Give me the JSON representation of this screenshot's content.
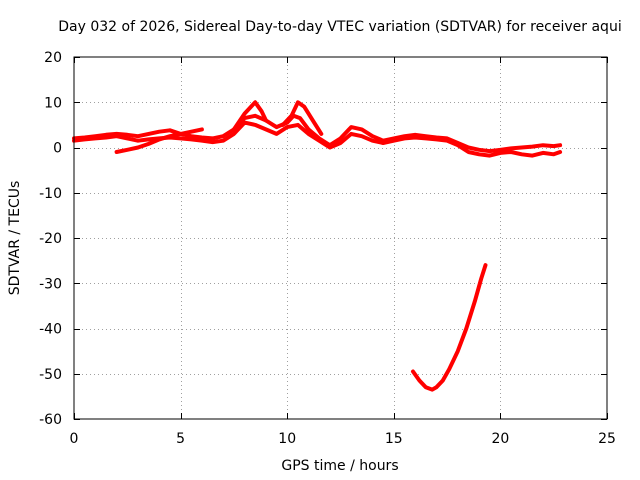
{
  "chart_data": {
    "type": "line",
    "title": "Day 032 of 2026, Sidereal Day-to-day VTEC variation (SDTVAR) for receiver aqui",
    "xlabel": "GPS time / hours",
    "ylabel": "SDTVAR / TECUs",
    "xlim": [
      0,
      25
    ],
    "ylim": [
      -60,
      20
    ],
    "xticks": [
      0,
      5,
      10,
      15,
      20,
      25
    ],
    "xtick_labels": [
      "0",
      "5",
      "10",
      "15",
      "20",
      "25"
    ],
    "yticks": [
      20,
      10,
      0,
      -10,
      -20,
      -30,
      -40,
      -50,
      -60
    ],
    "ytick_labels": [
      "20",
      "10",
      "0",
      "-10",
      "-20",
      "-30",
      "-40",
      "-50",
      "-60"
    ],
    "grid": true,
    "line_color": "#ff0000",
    "series": [
      {
        "name": "main-band-upper",
        "x": [
          0.0,
          0.5,
          1.0,
          1.5,
          2.0,
          2.5,
          3.0,
          3.5,
          4.0,
          4.5,
          5.0,
          5.5,
          6.0,
          6.5,
          7.0,
          7.5,
          8.0,
          8.5,
          9.0,
          9.5,
          10.0,
          10.3,
          10.6,
          11.0,
          11.5,
          12.0,
          12.5,
          13.0,
          13.5,
          14.0,
          14.5,
          15.0,
          15.5,
          16.0,
          16.5,
          17.0,
          17.5,
          18.0,
          18.5,
          19.0,
          19.5,
          20.0,
          20.5,
          21.0,
          21.5,
          22.0,
          22.5,
          22.8
        ],
        "values": [
          2.0,
          2.2,
          2.5,
          2.8,
          3.0,
          2.8,
          2.5,
          3.0,
          3.5,
          3.8,
          3.0,
          2.5,
          2.2,
          2.0,
          2.5,
          4.0,
          6.5,
          7.0,
          6.0,
          4.5,
          5.5,
          7.0,
          6.5,
          4.0,
          2.0,
          0.5,
          2.0,
          4.5,
          4.0,
          2.5,
          1.5,
          2.0,
          2.5,
          2.8,
          2.5,
          2.2,
          2.0,
          1.0,
          0.0,
          -0.5,
          -0.8,
          -0.5,
          -0.2,
          0.0,
          0.2,
          0.5,
          0.3,
          0.5
        ]
      },
      {
        "name": "main-band-lower",
        "x": [
          0.0,
          0.5,
          1.0,
          1.5,
          2.0,
          2.5,
          3.0,
          3.5,
          4.0,
          4.5,
          5.0,
          5.5,
          6.0,
          6.5,
          7.0,
          7.5,
          8.0,
          8.5,
          9.0,
          9.5,
          10.0,
          10.5,
          11.0,
          11.5,
          12.0,
          12.5,
          13.0,
          13.5,
          14.0,
          14.5,
          15.0,
          15.5,
          16.0,
          16.5,
          17.0,
          17.5,
          18.0,
          18.5,
          19.0,
          19.5,
          20.0,
          20.5,
          21.0,
          21.5,
          22.0,
          22.5,
          22.8
        ],
        "values": [
          1.5,
          1.8,
          2.0,
          2.2,
          2.5,
          2.0,
          1.5,
          1.8,
          2.0,
          2.2,
          2.0,
          1.8,
          1.5,
          1.2,
          1.5,
          3.0,
          5.5,
          5.0,
          4.0,
          3.0,
          4.5,
          5.0,
          3.0,
          1.5,
          0.0,
          1.0,
          3.0,
          2.5,
          1.5,
          1.0,
          1.5,
          2.0,
          2.2,
          2.0,
          1.8,
          1.5,
          0.5,
          -1.0,
          -1.5,
          -1.8,
          -1.2,
          -1.0,
          -1.5,
          -1.8,
          -1.2,
          -1.5,
          -1.0
        ]
      },
      {
        "name": "secondary-arc",
        "x": [
          2.0,
          2.5,
          3.0,
          3.5,
          4.0,
          4.5,
          5.0,
          5.5,
          6.0
        ],
        "values": [
          -1.0,
          -0.5,
          0.0,
          0.8,
          1.8,
          2.5,
          3.0,
          3.5,
          4.0
        ]
      },
      {
        "name": "spike-8",
        "x": [
          7.5,
          8.0,
          8.5,
          8.8,
          9.0
        ],
        "values": [
          4.0,
          7.5,
          10.0,
          8.0,
          6.0
        ]
      },
      {
        "name": "spike-10",
        "x": [
          9.8,
          10.2,
          10.5,
          10.8,
          11.2,
          11.6
        ],
        "values": [
          5.0,
          7.0,
          10.0,
          9.0,
          6.0,
          3.0
        ]
      },
      {
        "name": "dip-17",
        "x": [
          15.9,
          16.2,
          16.5,
          16.8,
          17.0,
          17.3,
          17.6,
          18.0,
          18.4,
          18.8,
          19.1,
          19.3
        ],
        "values": [
          -49.5,
          -51.5,
          -53.0,
          -53.5,
          -53.0,
          -51.5,
          -49.0,
          -45.0,
          -40.0,
          -34.0,
          -29.0,
          -26.0
        ]
      }
    ]
  }
}
